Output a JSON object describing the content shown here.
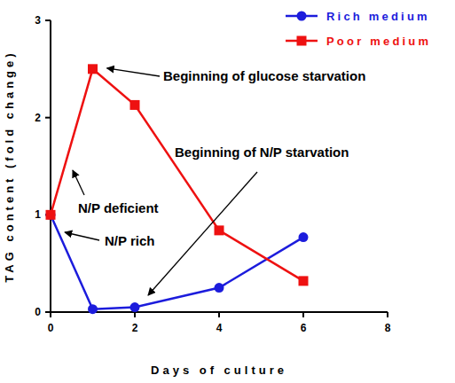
{
  "chart_data": {
    "type": "line",
    "x_label": "Days of culture",
    "y_label": "TAG content (fold change)",
    "x": [
      0,
      1,
      2,
      4,
      6
    ],
    "series": [
      {
        "name": "Rich medium",
        "color": "#1c1cdc",
        "marker": "circle",
        "values": [
          1,
          0.03,
          0.05,
          0.25,
          0.77
        ]
      },
      {
        "name": "Poor medium",
        "color": "#ee1111",
        "marker": "square",
        "values": [
          1,
          2.5,
          2.13,
          0.84,
          0.32
        ]
      }
    ],
    "xlim": [
      0,
      8
    ],
    "xticks": [
      0,
      2,
      4,
      6,
      8
    ],
    "ylim": [
      0,
      3
    ],
    "yticks": [
      0,
      1,
      2,
      3
    ],
    "grid": false,
    "legend": "top-right",
    "annotations": [
      "Beginning of glucose starvation",
      "Beginning of N/P starvation",
      "N/P deficient",
      "N/P rich"
    ]
  }
}
